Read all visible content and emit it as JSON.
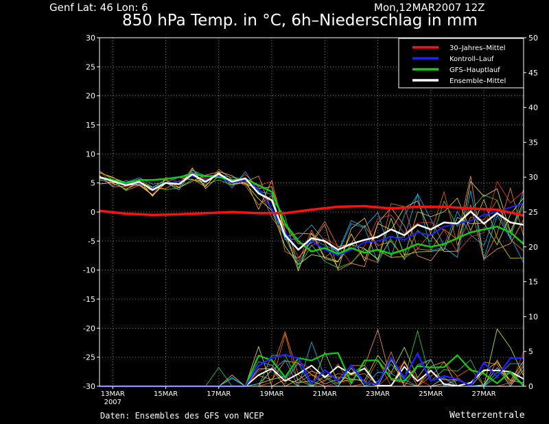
{
  "header": {
    "location": "Genf   Lat: 46 Lon: 6",
    "run": "Mon,12MAR2007 12Z",
    "title": "850 hPa Temp. in °C, 6h–Niederschlag in mm"
  },
  "footer": {
    "source": "Daten: Ensembles des GFS von NCEP",
    "brand": "Wetterzentrale"
  },
  "colors": {
    "climate": "#ff1010",
    "control": "#2020ff",
    "gfs": "#10d010",
    "mean": "#ffffff",
    "grid": "#808080"
  },
  "chart_data": {
    "type": "line",
    "x_unit": "days from 13MAR 00Z",
    "x_range": [
      -0.5,
      15.5
    ],
    "x_tick_labels": [
      {
        "x": 0,
        "label": "13MAR",
        "sub": "2007"
      },
      {
        "x": 2,
        "label": "15MAR"
      },
      {
        "x": 4,
        "label": "17MAR"
      },
      {
        "x": 6,
        "label": "19MAR"
      },
      {
        "x": 8,
        "label": "21MAR"
      },
      {
        "x": 10,
        "label": "23MAR"
      },
      {
        "x": 12,
        "label": "25MAR"
      },
      {
        "x": 14,
        "label": "27MAR"
      }
    ],
    "y_left": {
      "min": -30,
      "max": 30,
      "ticks": [
        30,
        25,
        20,
        15,
        10,
        5,
        0,
        -5,
        -10,
        -15,
        -20,
        -25,
        -30
      ]
    },
    "y_right": {
      "min": 0,
      "max": 50,
      "ticks": [
        50,
        45,
        40,
        35,
        30,
        25,
        20,
        15,
        10,
        5,
        0
      ]
    },
    "grid": true,
    "legend_position": "top-right",
    "legend": [
      {
        "key": "climate",
        "label": "30–Jahres–Mittel"
      },
      {
        "key": "control",
        "label": "Kontroll–Lauf"
      },
      {
        "key": "gfs",
        "label": "GFS–Hauptlauf"
      },
      {
        "key": "mean",
        "label": "Ensemble–Mittel"
      }
    ],
    "series": [
      {
        "key": "climate",
        "axis": "left",
        "x": [
          -0.5,
          0.5,
          1.5,
          2.5,
          3.5,
          4.5,
          5.5,
          6.5,
          7.5,
          8.5,
          9.5,
          10.5,
          11.5,
          12.5,
          13.5,
          14.5,
          15.5
        ],
        "y": [
          0.2,
          -0.3,
          -0.5,
          -0.4,
          -0.2,
          0,
          -0.2,
          -0.2,
          0.4,
          0.9,
          1.0,
          0.6,
          0.9,
          0.9,
          0.6,
          0.4,
          -0.6
        ]
      },
      {
        "key": "mean",
        "axis": "left",
        "x": [
          -0.5,
          0,
          0.5,
          1,
          1.5,
          2,
          2.5,
          3,
          3.5,
          4,
          4.5,
          5,
          5.5,
          6,
          6.5,
          7,
          7.5,
          8,
          8.5,
          9,
          9.5,
          10,
          10.5,
          11,
          11.5,
          12,
          12.5,
          13,
          13.5,
          14,
          14.5,
          15,
          15.5
        ],
        "y": [
          6,
          5.3,
          4.6,
          5.2,
          3.8,
          5,
          4.8,
          6.5,
          5.2,
          6.6,
          5.2,
          5.8,
          3.2,
          2.0,
          -4.0,
          -6.5,
          -4.5,
          -5.0,
          -6.5,
          -5.5,
          -4.8,
          -4.3,
          -3.0,
          -4.0,
          -2.2,
          -3.0,
          -1.8,
          -2.0,
          0.1,
          -2.0,
          -0.2,
          -1.8,
          -2.2
        ]
      },
      {
        "key": "gfs",
        "axis": "left",
        "x": [
          -0.5,
          0,
          0.5,
          1,
          1.5,
          2,
          2.5,
          3,
          3.5,
          4,
          4.5,
          5,
          5.5,
          6,
          6.5,
          7,
          7.5,
          8,
          8.5,
          9,
          9.5,
          10,
          10.5,
          11,
          11.5,
          12,
          12.5,
          13,
          13.5,
          14,
          14.5,
          15,
          15.5
        ],
        "y": [
          6,
          5.5,
          5.0,
          5.5,
          5.5,
          5.7,
          6.0,
          6.5,
          6.2,
          6.0,
          5.5,
          5.7,
          4.6,
          3.5,
          -2.0,
          -5.0,
          -6.8,
          -6.2,
          -7.2,
          -6.2,
          -7.0,
          -6.5,
          -7.2,
          -6.5,
          -5.5,
          -6.0,
          -5.5,
          -4.5,
          -3.5,
          -3.0,
          -2.5,
          -3.5,
          -5.5
        ]
      },
      {
        "key": "control",
        "axis": "left",
        "x": [
          -0.5,
          0,
          0.5,
          1,
          1.5,
          2,
          2.5,
          3,
          3.5,
          4,
          4.5,
          5,
          5.5,
          6,
          6.5,
          7,
          7.5,
          8,
          8.5,
          9,
          9.5,
          10,
          10.5,
          11,
          11.5,
          12,
          12.5,
          13,
          13.5,
          14,
          14.5,
          15,
          15.5
        ],
        "y": [
          6,
          5.4,
          4.8,
          5.0,
          4.0,
          5.0,
          5.2,
          6.2,
          5.5,
          6.2,
          5.0,
          5.5,
          4.0,
          0.5,
          -3.5,
          -6.5,
          -5.0,
          -6.5,
          -7.5,
          -6.5,
          -5.2,
          -5.0,
          -4.2,
          -4.8,
          -3.5,
          -4.0,
          -2.5,
          -2.0,
          -1.5,
          -0.5,
          0.0,
          0.8,
          1.5
        ]
      }
    ]
  }
}
